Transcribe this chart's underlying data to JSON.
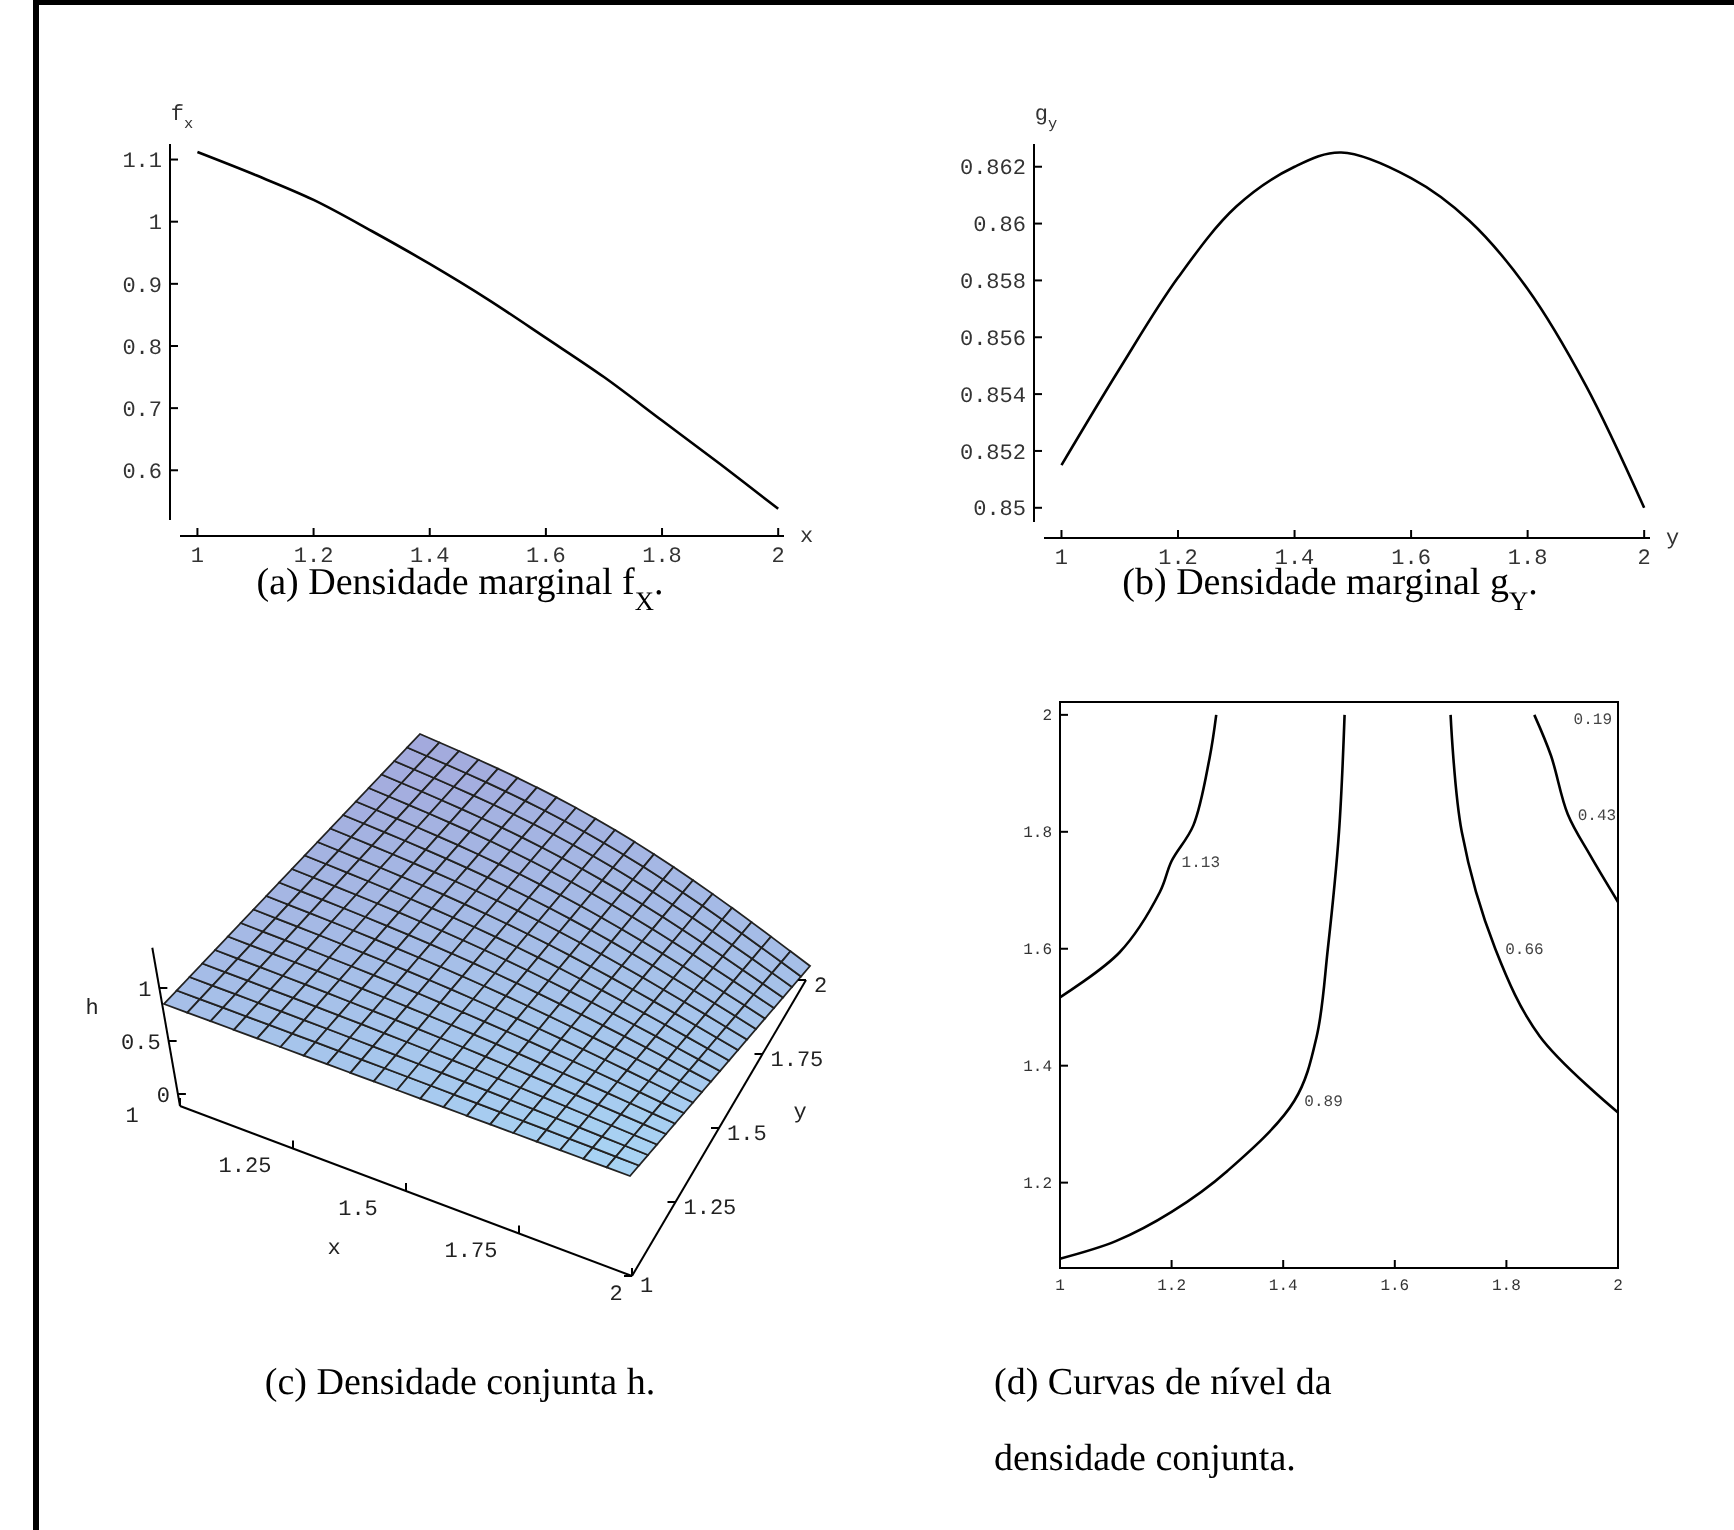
{
  "chart_data": [
    {
      "type": "line",
      "title": "(a) Densidade marginal f$_{X}$.",
      "xlabel": "x",
      "ylabel": "f$_{x}$",
      "xlim": [
        0.97,
        2.01
      ],
      "ylim": [
        0.52,
        1.125
      ],
      "xticks": [
        1,
        1.2,
        1.4,
        1.6,
        1.8,
        2
      ],
      "yticks": [
        0.6,
        0.7,
        0.8,
        0.9,
        1,
        1.1
      ],
      "x": [
        1,
        1.1,
        1.2,
        1.3,
        1.4,
        1.5,
        1.6,
        1.7,
        1.8,
        1.9,
        2
      ],
      "series": [
        {
          "color": "#000000",
          "values": [
            1.112,
            1.075,
            1.035,
            0.985,
            0.932,
            0.875,
            0.813,
            0.75,
            0.68,
            0.61,
            0.538
          ]
        }
      ]
    },
    {
      "type": "line",
      "title": "(b) Densidade marginal g$_{Y}$.",
      "xlabel": "y",
      "ylabel": "g$_{y}$",
      "xlim": [
        0.97,
        2.01
      ],
      "ylim": [
        0.8495,
        0.8628
      ],
      "xticks": [
        1,
        1.2,
        1.4,
        1.6,
        1.8,
        2
      ],
      "yticks": [
        0.85,
        0.852,
        0.854,
        0.856,
        0.858,
        0.86,
        0.862
      ],
      "x": [
        1,
        1.1,
        1.2,
        1.3,
        1.4,
        1.48,
        1.6,
        1.7,
        1.8,
        1.9,
        2
      ],
      "series": [
        {
          "color": "#000000",
          "values": [
            0.8515,
            0.8549,
            0.8581,
            0.8606,
            0.862,
            0.8625,
            0.8616,
            0.8601,
            0.8577,
            0.8543,
            0.85
          ]
        }
      ]
    },
    {
      "type": "other",
      "title": "(c) Densidade conjunta h.",
      "xlabel": "x",
      "ylabel": "h",
      "y2label": "y",
      "annotations": [
        "1",
        "1.25",
        "1.5",
        "1.75",
        "2",
        "1",
        "1.25",
        "1.5",
        "1.75",
        "2",
        "0",
        "0.5",
        "1"
      ]
    },
    {
      "type": "line",
      "title": "(d) Curvas de nível da densidade conjunta.",
      "xlim": [
        1,
        2
      ],
      "ylim": [
        1.054,
        2.022
      ],
      "xticks": [
        1,
        1.2,
        1.4,
        1.6,
        1.8,
        2
      ],
      "yticks": [
        1.2,
        1.4,
        1.6,
        1.8,
        2
      ],
      "series": [
        {
          "name": "1.13",
          "color": "#000000",
          "x": [
            1,
            1.107,
            1.179,
            1.2,
            1.239,
            1.268,
            1.28
          ],
          "values": [
            1.517,
            1.594,
            1.697,
            1.75,
            1.811,
            1.926,
            2.0
          ]
        },
        {
          "name": "0.89",
          "color": "#000000",
          "x": [
            1,
            1.1,
            1.2,
            1.3,
            1.42,
            1.46,
            1.48,
            1.5,
            1.51
          ],
          "values": [
            1.07,
            1.1,
            1.15,
            1.22,
            1.34,
            1.45,
            1.6,
            1.8,
            2.0
          ]
        },
        {
          "name": "0.66",
          "color": "#000000",
          "x": [
            1.7,
            1.72,
            1.78,
            1.86,
            2.0
          ],
          "values": [
            2.0,
            1.8,
            1.6,
            1.45,
            1.32
          ]
        },
        {
          "name": "0.43",
          "color": "#000000",
          "x": [
            1.85,
            1.88,
            1.91,
            1.95,
            2.0
          ],
          "values": [
            2.0,
            1.93,
            1.83,
            1.76,
            1.68
          ]
        }
      ],
      "annotations": [
        "0.19"
      ]
    }
  ]
}
